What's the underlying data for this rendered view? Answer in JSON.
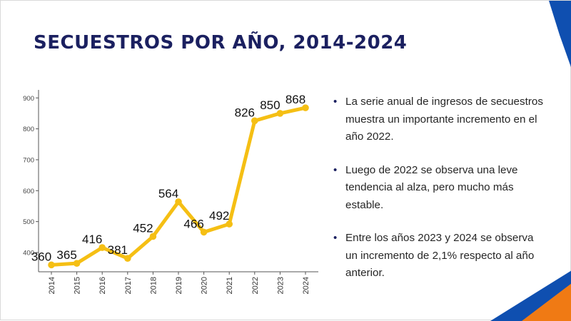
{
  "slide": {
    "title": "SECUESTROS POR AÑO, 2014-2024",
    "bullets": [
      "La serie anual de ingresos de secuestros muestra un importante incremento en el año 2022.",
      "Luego de 2022 se observa una leve tendencia al alza, pero mucho más estable.",
      "Entre los años 2023 y 2024 se observa un incremento de 2,1% respecto al año anterior."
    ],
    "bullet_symbol": "•"
  },
  "colors": {
    "title": "#1b2060",
    "line": "#f5bf14",
    "accent_blue": "#0f4fb0",
    "accent_orange": "#f07a14"
  },
  "chart_data": {
    "type": "line",
    "title": "",
    "xlabel": "",
    "ylabel": "",
    "categories": [
      "2014",
      "2015",
      "2016",
      "2017",
      "2018",
      "2019",
      "2020",
      "2021",
      "2022",
      "2023",
      "2024"
    ],
    "values": [
      360,
      365,
      416,
      381,
      452,
      564,
      466,
      492,
      826,
      850,
      868
    ],
    "data_labels": [
      "360",
      "365",
      "416",
      "381",
      "452",
      "564",
      "466",
      "492",
      "826",
      "850",
      "868"
    ],
    "y_ticks": [
      400,
      500,
      600,
      700,
      800,
      900
    ],
    "ylim": [
      350,
      925
    ],
    "grid": false,
    "legend": "none",
    "x_tick_rotation": -90
  }
}
